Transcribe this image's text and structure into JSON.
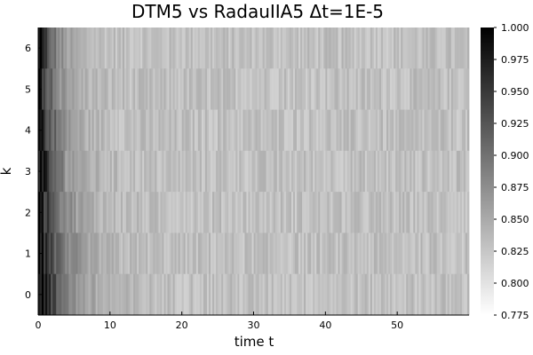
{
  "chart_data": {
    "type": "heatmap",
    "title": "DTM5 vs RadauIIA5 Δt=1E-5",
    "xlabel": "time t",
    "ylabel": "k",
    "xlim": [
      0,
      60
    ],
    "x_ticks": [
      0,
      10,
      20,
      30,
      40,
      50
    ],
    "y_categories": [
      "0",
      "1",
      "2",
      "3",
      "4",
      "5",
      "6"
    ],
    "colorbar": {
      "range": [
        0.775,
        1.0
      ],
      "ticks": [
        "0.775",
        "0.800",
        "0.825",
        "0.850",
        "0.875",
        "0.900",
        "0.925",
        "0.950",
        "0.975",
        "1.000"
      ],
      "colormap": "grayscale (light = low, dark = high)"
    },
    "value_profile": {
      "description": "values near 1.0 at t≈0, decaying rapidly over first ~10 time units, then fluctuating around ~0.83 with small random variation; higher k rows slightly darker early on",
      "early_peak": 1.0,
      "plateau_mean": 0.83,
      "plateau_noise": 0.015
    },
    "grid": false
  }
}
